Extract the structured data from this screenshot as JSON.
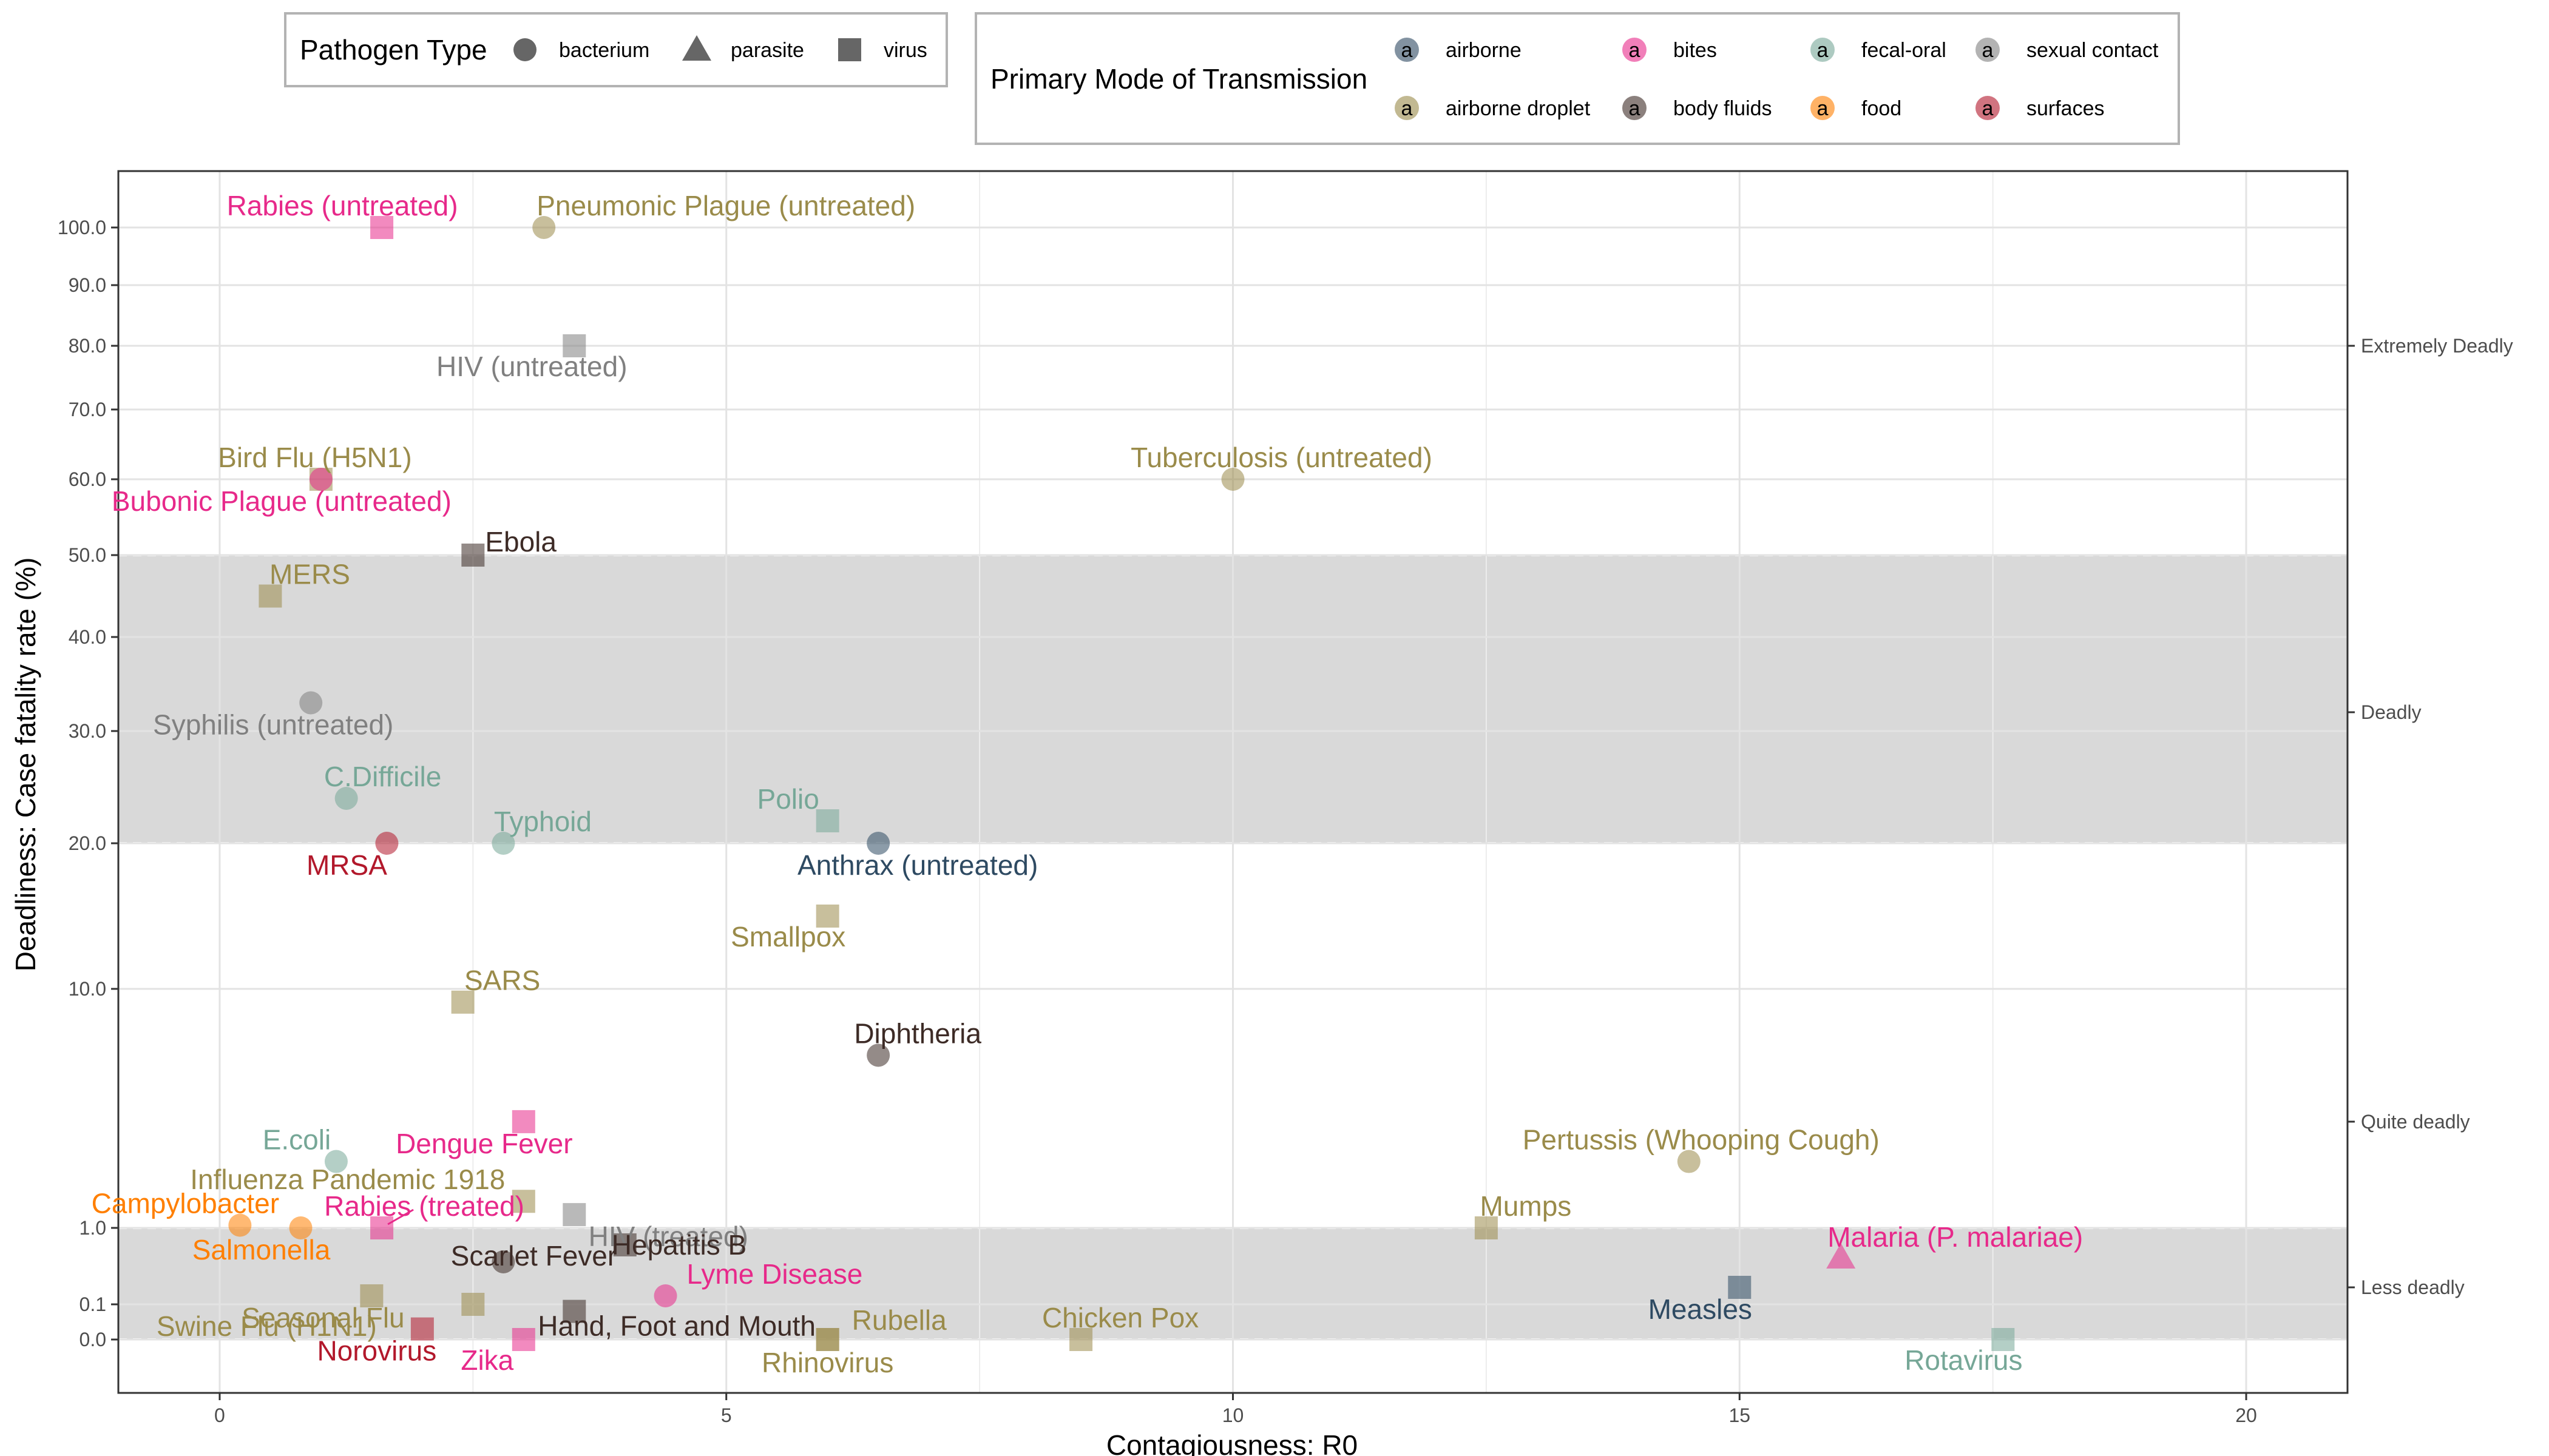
{
  "chart_data": {
    "type": "scatter",
    "xlabel": "Contagiousness: R0",
    "ylabel": "Deadliness: Case fatality rate (%)",
    "xlim": [
      -1,
      21
    ],
    "x_ticks": [
      0,
      5,
      10,
      15,
      20
    ],
    "y_scale": "pseudo-log",
    "y_ticks": [
      "0.0",
      "0.1",
      "1.0",
      "10.0",
      "20.0",
      "30.0",
      "40.0",
      "50.0",
      "60.0",
      "70.0",
      "80.0",
      "90.0",
      "100.0"
    ],
    "y_tick_values": [
      0,
      0.1,
      1,
      10,
      20,
      30,
      40,
      50,
      60,
      70,
      80,
      90,
      100
    ],
    "grid": true,
    "bands": [
      {
        "ymin": 20,
        "ymax": 50,
        "color": "#d9d9d9"
      },
      {
        "ymin": 0,
        "ymax": 1,
        "color": "#d9d9d9"
      }
    ],
    "secondary_axis_labels": [
      {
        "label": "Extremely Deadly",
        "y": 80
      },
      {
        "label": "Deadly",
        "y": 32
      },
      {
        "label": "Quite deadly",
        "y": 5
      },
      {
        "label": "Less deadly",
        "y": 0.3
      }
    ],
    "legend_shape": {
      "title": "Pathogen Type",
      "placement": "top",
      "entries": [
        {
          "label": "bacterium",
          "shape": "circle"
        },
        {
          "label": "parasite",
          "shape": "triangle"
        },
        {
          "label": "virus",
          "shape": "square"
        }
      ]
    },
    "legend_color": {
      "title": "Primary Mode of Transmission",
      "placement": "top",
      "key_glyph": "a",
      "entries": [
        {
          "label": "airborne",
          "color": "#2e4a62"
        },
        {
          "label": "airborne droplet",
          "color": "#9a8b4a"
        },
        {
          "label": "bites",
          "color": "#e7298a"
        },
        {
          "label": "body fluids",
          "color": "#3d2b26"
        },
        {
          "label": "fecal-oral",
          "color": "#76a797"
        },
        {
          "label": "food",
          "color": "#ff7f00"
        },
        {
          "label": "sexual contact",
          "color": "#808080"
        },
        {
          "label": "surfaces",
          "color": "#b2182b"
        }
      ]
    },
    "points": [
      {
        "label": "Rabies (untreated)",
        "x": 1.6,
        "y": 100,
        "type": "virus",
        "mode": "bites"
      },
      {
        "label": "Pneumonic Plague (untreated)",
        "x": 3.2,
        "y": 100,
        "type": "bacterium",
        "mode": "airborne droplet"
      },
      {
        "label": "HIV (untreated)",
        "x": 3.5,
        "y": 80,
        "type": "virus",
        "mode": "sexual contact"
      },
      {
        "label": "Bird Flu (H5N1)",
        "x": 1.0,
        "y": 60,
        "type": "virus",
        "mode": "airborne droplet"
      },
      {
        "label": "Bubonic Plague (untreated)",
        "x": 1.0,
        "y": 60,
        "type": "bacterium",
        "mode": "bites"
      },
      {
        "label": "Tuberculosis (untreated)",
        "x": 10,
        "y": 60,
        "type": "bacterium",
        "mode": "airborne droplet"
      },
      {
        "label": "Ebola",
        "x": 2.5,
        "y": 50,
        "type": "virus",
        "mode": "body fluids"
      },
      {
        "label": "MERS",
        "x": 0.5,
        "y": 45,
        "type": "virus",
        "mode": "airborne droplet"
      },
      {
        "label": "Syphilis (untreated)",
        "x": 0.9,
        "y": 33,
        "type": "bacterium",
        "mode": "sexual contact"
      },
      {
        "label": "C.Difficile",
        "x": 1.25,
        "y": 24,
        "type": "bacterium",
        "mode": "fecal-oral"
      },
      {
        "label": "Polio",
        "x": 6,
        "y": 22,
        "type": "virus",
        "mode": "fecal-oral"
      },
      {
        "label": "Typhoid",
        "x": 2.8,
        "y": 20,
        "type": "bacterium",
        "mode": "fecal-oral"
      },
      {
        "label": "MRSA",
        "x": 1.65,
        "y": 20,
        "type": "bacterium",
        "mode": "surfaces"
      },
      {
        "label": "Anthrax (untreated)",
        "x": 6.5,
        "y": 20,
        "type": "bacterium",
        "mode": "airborne"
      },
      {
        "label": "Smallpox",
        "x": 6,
        "y": 15,
        "type": "virus",
        "mode": "airborne droplet"
      },
      {
        "label": "SARS",
        "x": 2.4,
        "y": 9.5,
        "type": "virus",
        "mode": "airborne droplet"
      },
      {
        "label": "Diphtheria",
        "x": 6.5,
        "y": 7.5,
        "type": "bacterium",
        "mode": "body fluids"
      },
      {
        "label": "Dengue Fever",
        "x": 3.0,
        "y": 5.0,
        "type": "virus",
        "mode": "bites"
      },
      {
        "label": "E.coli",
        "x": 1.15,
        "y": 3.5,
        "type": "bacterium",
        "mode": "fecal-oral"
      },
      {
        "label": "Pertussis (Whooping Cough)",
        "x": 14.5,
        "y": 3.5,
        "type": "bacterium",
        "mode": "airborne droplet"
      },
      {
        "label": "Influenza Pandemic 1918",
        "x": 3.0,
        "y": 2.0,
        "type": "virus",
        "mode": "airborne droplet"
      },
      {
        "label": "HIV (treated)",
        "x": 3.5,
        "y": 1.5,
        "type": "virus",
        "mode": "sexual contact"
      },
      {
        "label": "Campylobacter",
        "x": 0.2,
        "y": 1.1,
        "type": "bacterium",
        "mode": "food"
      },
      {
        "label": "Rabies (treated)",
        "x": 1.6,
        "y": 1.0,
        "type": "virus",
        "mode": "bites"
      },
      {
        "label": "Salmonella",
        "x": 0.8,
        "y": 1.0,
        "type": "bacterium",
        "mode": "food"
      },
      {
        "label": "Mumps",
        "x": 12.5,
        "y": 1.0,
        "type": "virus",
        "mode": "airborne droplet"
      },
      {
        "label": "Scarlet Fever",
        "x": 2.8,
        "y": 0.6,
        "type": "bacterium",
        "mode": "body fluids"
      },
      {
        "label": "Hepatitis B",
        "x": 4.0,
        "y": 0.8,
        "type": "virus",
        "mode": "body fluids"
      },
      {
        "label": "Malaria (P. malariae)",
        "x": 16,
        "y": 0.65,
        "type": "parasite",
        "mode": "bites"
      },
      {
        "label": "Lyme Disease",
        "x": 4.4,
        "y": 0.2,
        "type": "bacterium",
        "mode": "bites"
      },
      {
        "label": "Measles",
        "x": 15,
        "y": 0.3,
        "type": "virus",
        "mode": "airborne"
      },
      {
        "label": "Seasonal Flu",
        "x": 1.5,
        "y": 0.2,
        "type": "virus",
        "mode": "airborne droplet"
      },
      {
        "label": "Swine Flu (H1N1)",
        "x": 2.5,
        "y": 0.1,
        "type": "virus",
        "mode": "airborne droplet"
      },
      {
        "label": "Hand, Foot and Mouth",
        "x": 3.5,
        "y": 0.08,
        "type": "virus",
        "mode": "body fluids"
      },
      {
        "label": "Norovirus",
        "x": 2.0,
        "y": 0.03,
        "type": "virus",
        "mode": "surfaces"
      },
      {
        "label": "Rubella",
        "x": 6.0,
        "y": 0.0,
        "type": "virus",
        "mode": "airborne droplet"
      },
      {
        "label": "Rhinovirus",
        "x": 6.0,
        "y": 0.0,
        "type": "virus",
        "mode": "airborne droplet"
      },
      {
        "label": "Chicken Pox",
        "x": 8.5,
        "y": 0.0,
        "type": "virus",
        "mode": "airborne droplet"
      },
      {
        "label": "Zika",
        "x": 3.0,
        "y": 0.0,
        "type": "virus",
        "mode": "bites"
      },
      {
        "label": "Rotavirus",
        "x": 17.6,
        "y": 0.0,
        "type": "virus",
        "mode": "fecal-oral"
      }
    ]
  }
}
